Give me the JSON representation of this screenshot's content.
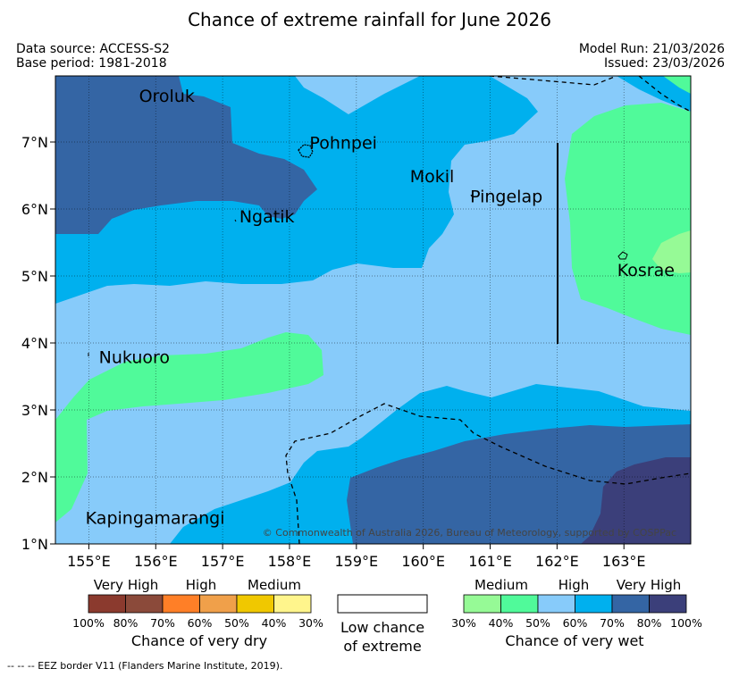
{
  "title": "Chance of extreme rainfall for June 2026",
  "meta": {
    "data_source": "Data source: ACCESS-S2",
    "base_period": "Base period: 1981-2018",
    "model_run": "Model Run: 21/03/2026",
    "issued": "Issued: 23/03/2026"
  },
  "map": {
    "lon_ticks": [
      "155°E",
      "156°E",
      "157°E",
      "158°E",
      "159°E",
      "160°E",
      "161°E",
      "162°E",
      "163°E"
    ],
    "lat_ticks": [
      "1°N",
      "2°N",
      "3°N",
      "4°N",
      "5°N",
      "6°N",
      "7°N"
    ],
    "places": [
      {
        "name": "Oroluk",
        "lon": 155.75,
        "lat": 7.6
      },
      {
        "name": "Pohnpei",
        "lon": 158.3,
        "lat": 6.9
      },
      {
        "name": "Mokil",
        "lon": 159.8,
        "lat": 6.4
      },
      {
        "name": "Pingelap",
        "lon": 160.7,
        "lat": 6.1
      },
      {
        "name": "Ngatik",
        "lon": 157.25,
        "lat": 5.8
      },
      {
        "name": "Kosrae",
        "lon": 162.9,
        "lat": 5.0
      },
      {
        "name": "Nukuoro",
        "lon": 155.15,
        "lat": 3.7
      },
      {
        "name": "Kapingamarangi",
        "lon": 154.95,
        "lat": 1.3
      }
    ],
    "copyright": "© Commonwealth of Australia 2026, Bureau of Meteorology, supported by COSPPac"
  },
  "legend": {
    "dry": {
      "categories": [
        "Very High",
        "High",
        "Medium"
      ],
      "ticks": [
        "100%",
        "80%",
        "70%",
        "60%",
        "50%",
        "40%",
        "30%"
      ],
      "colors": [
        "#8b3a2e",
        "#8b4a3a",
        "#ff7f27",
        "#f0a04a",
        "#f0c800",
        "#fff58c"
      ],
      "caption": "Chance of very dry"
    },
    "neutral": {
      "line1": "Low chance",
      "line2": "of extreme"
    },
    "wet": {
      "categories": [
        "Medium",
        "High",
        "Very High"
      ],
      "ticks": [
        "30%",
        "40%",
        "50%",
        "60%",
        "70%",
        "80%",
        "100%"
      ],
      "colors": [
        "#96fa96",
        "#50fa9a",
        "#87cbfa",
        "#00b0ee",
        "#3465a4",
        "#3b3f7a"
      ],
      "caption": "Chance of very wet"
    }
  },
  "colors": {
    "very_high_wet": "#3465a4",
    "high_wet_70": "#00b0ee",
    "high_wet_50": "#87cbfa",
    "medium_wet_40": "#50fa9a",
    "medium_wet_30": "#96fa96",
    "very_high_wet_80": "#3b3f7a"
  },
  "footnote": "--  --  -- EEZ border V11 (Flanders Marine Institute, 2019)."
}
